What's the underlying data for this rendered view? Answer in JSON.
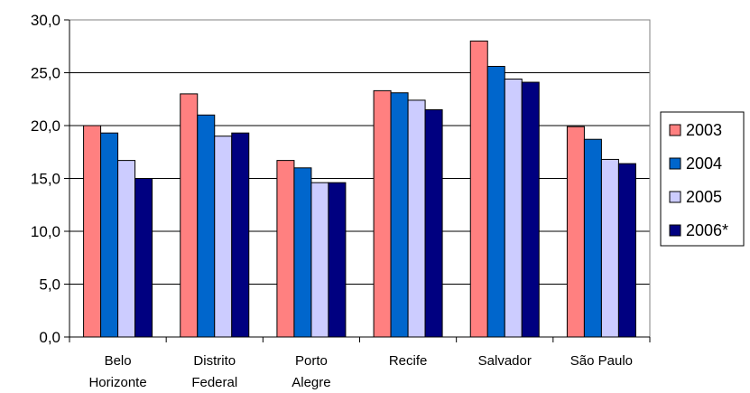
{
  "chart_data": {
    "type": "bar",
    "categories": [
      [
        "Belo",
        "Horizonte"
      ],
      [
        "Distrito",
        "Federal"
      ],
      [
        "Porto",
        "Alegre"
      ],
      [
        "Recife"
      ],
      [
        "Salvador"
      ],
      [
        "São Paulo"
      ]
    ],
    "series": [
      {
        "name": "2003",
        "color": "#FF8080",
        "values": [
          20.0,
          23.0,
          16.7,
          23.3,
          28.0,
          19.9
        ]
      },
      {
        "name": "2004",
        "color": "#0066CC",
        "values": [
          19.3,
          21.0,
          16.0,
          23.1,
          25.6,
          18.7
        ]
      },
      {
        "name": "2005",
        "color": "#CCCCFF",
        "values": [
          16.7,
          19.0,
          14.6,
          22.4,
          24.4,
          16.8
        ]
      },
      {
        "name": "2006*",
        "color": "#000080",
        "values": [
          15.0,
          19.3,
          14.6,
          21.5,
          24.1,
          16.4
        ]
      }
    ],
    "ylim": [
      0,
      30
    ],
    "yticks": [
      "0,0",
      "5,0",
      "10,0",
      "15,0",
      "20,0",
      "25,0",
      "30,0"
    ],
    "grid": true,
    "legend": "right"
  }
}
